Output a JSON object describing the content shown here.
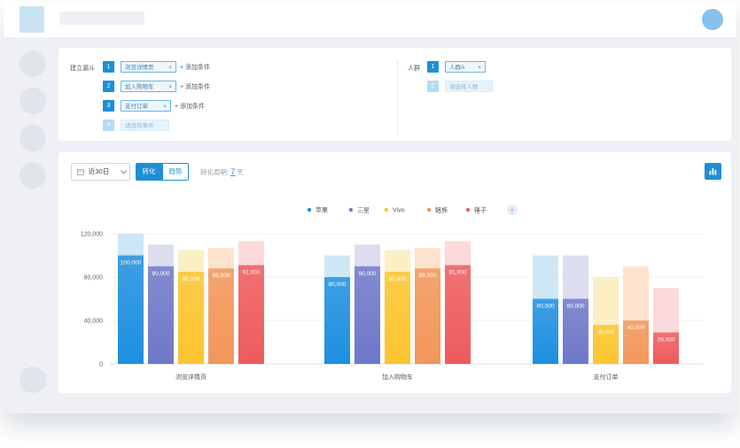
{
  "funnel": {
    "label": "建立漏斗",
    "steps": [
      {
        "num": "1",
        "name": "浏览详情页",
        "add": "+ 添加条件"
      },
      {
        "num": "2",
        "name": "加入购物车",
        "add": "+ 添加条件"
      },
      {
        "num": "3",
        "name": "支付订单",
        "add": "+ 添加条件"
      }
    ],
    "new_step": {
      "num": "4",
      "placeholder": "请选择事件"
    }
  },
  "crowd": {
    "label": "人群",
    "items": [
      {
        "num": "1",
        "name": "人群A"
      }
    ],
    "new_item": {
      "num": "2",
      "placeholder": "请选择人群"
    }
  },
  "toolbar": {
    "range": "近30日",
    "tab_conversion": "转化",
    "tab_trend": "趋势",
    "period_label": "转化周期:",
    "period_value": "7",
    "period_unit": "天"
  },
  "icons": {
    "close": "close-icon",
    "calendar": "calendar-icon",
    "dropdown": "chevron-down-icon",
    "chart_type": "bar-chart-icon",
    "legend_more": "plus-icon"
  },
  "colors": {
    "accent": "#1e8fd6",
    "series": [
      "#1e8fe0",
      "#6f78c9",
      "#fcc42e",
      "#f2975a",
      "#ee5b5c"
    ]
  },
  "chart_data": {
    "type": "bar",
    "categories": [
      "浏览详情页",
      "加入购物车",
      "支付订单"
    ],
    "ylim": [
      0,
      120000
    ],
    "yticks": [
      "0",
      "40,000",
      "80,000",
      "120,000"
    ],
    "grid": true,
    "legend_position": "top-center",
    "series": [
      {
        "name": "苹果",
        "values": [
          100000,
          80000,
          60000
        ],
        "totals": [
          120000,
          100000,
          100000
        ]
      },
      {
        "name": "三星",
        "values": [
          90000,
          90000,
          60000
        ],
        "totals": [
          110000,
          110000,
          100000
        ]
      },
      {
        "name": "Vivo",
        "values": [
          85000,
          85000,
          36000
        ],
        "totals": [
          105000,
          105000,
          80000
        ]
      },
      {
        "name": "魅族",
        "values": [
          88000,
          88000,
          40000
        ],
        "totals": [
          107000,
          107000,
          90000
        ]
      },
      {
        "name": "锤子",
        "values": [
          91000,
          91000,
          29000
        ],
        "totals": [
          113000,
          113000,
          70000
        ]
      }
    ],
    "data_labels": [
      [
        "100,000",
        "80,000",
        "60,000"
      ],
      [
        "90,000",
        "90,000",
        "60,000"
      ],
      [
        "85,000",
        "85,000",
        "36,000"
      ],
      [
        "88,000",
        "88,000",
        "40,000"
      ],
      [
        "91,000",
        "91,000",
        "29,000"
      ]
    ]
  }
}
